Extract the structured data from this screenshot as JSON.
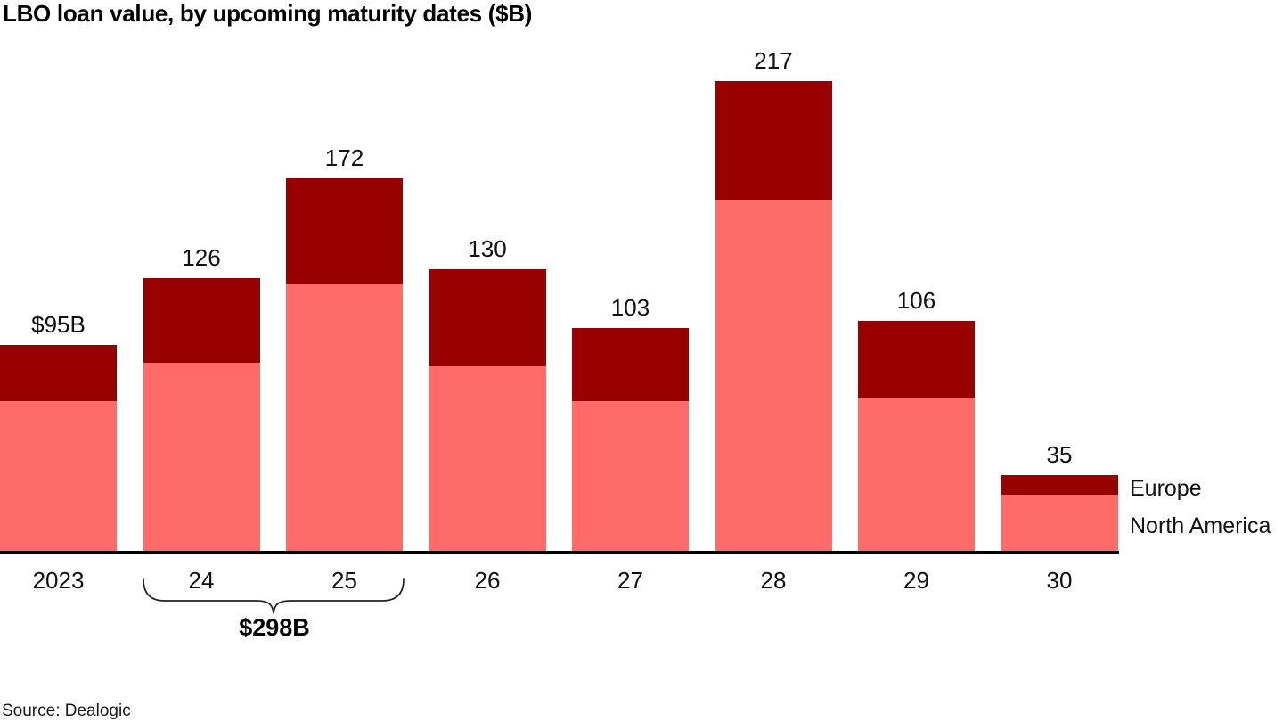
{
  "chart_data": {
    "type": "bar",
    "stacked": true,
    "title": "LBO loan value, by upcoming maturity dates ($B)",
    "categories": [
      "2023",
      "24",
      "25",
      "26",
      "27",
      "28",
      "29",
      "30"
    ],
    "series": [
      {
        "name": "North America",
        "color": "#fe6b68",
        "values": [
          69,
          87,
          123,
          85,
          69,
          162,
          71,
          26
        ]
      },
      {
        "name": "Europe",
        "color": "#990000",
        "values": [
          26,
          39,
          49,
          45,
          34,
          55,
          35,
          9
        ]
      }
    ],
    "totals": [
      95,
      126,
      172,
      130,
      103,
      217,
      106,
      35
    ],
    "total_labels": [
      "$95B",
      "126",
      "172",
      "130",
      "103",
      "217",
      "106",
      "35"
    ],
    "xlabel": "",
    "ylabel": "",
    "ylim": [
      0,
      230
    ],
    "grid": false,
    "legend_position": "right-of-last-bar",
    "axis_color": "#000000"
  },
  "legend": {
    "items": [
      {
        "label": "Europe",
        "color": "#990000"
      },
      {
        "label": "North America",
        "color": "#fe6b68"
      }
    ]
  },
  "annotation": {
    "label": "$298B",
    "span_categories": [
      "24",
      "25"
    ],
    "sum": 298
  },
  "footer": {
    "source": "Source: Dealogic"
  }
}
